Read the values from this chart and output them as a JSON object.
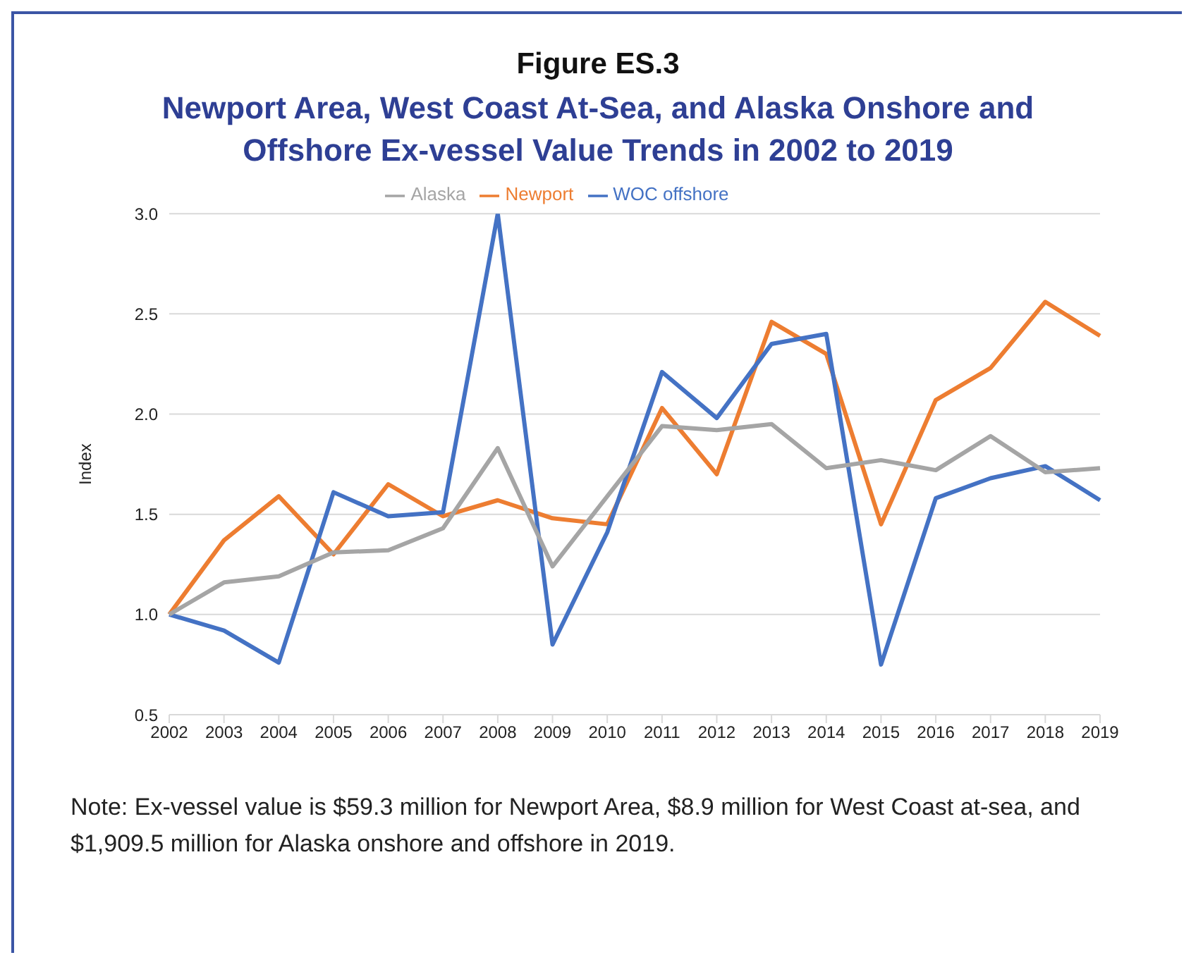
{
  "chart_data": {
    "type": "line",
    "title": "Figure ES.3",
    "subtitle": "Newport Area, West Coast At-Sea, and Alaska Onshore and Offshore Ex-vessel Value Trends in 2002 to 2019",
    "ylabel": "Index",
    "categories": [
      "2002",
      "2003",
      "2004",
      "2005",
      "2006",
      "2007",
      "2008",
      "2009",
      "2010",
      "2011",
      "2012",
      "2013",
      "2014",
      "2015",
      "2016",
      "2017",
      "2018",
      "2019"
    ],
    "series": [
      {
        "name": "Newport",
        "color": "#ed7d31",
        "values": [
          1.0,
          1.37,
          1.59,
          1.3,
          1.65,
          1.49,
          1.57,
          1.48,
          1.45,
          2.03,
          1.7,
          2.46,
          2.3,
          1.45,
          2.07,
          2.23,
          2.56,
          2.39
        ]
      },
      {
        "name": "WOC offshore",
        "color": "#4472c4",
        "values": [
          1.0,
          0.92,
          0.76,
          1.61,
          1.49,
          1.51,
          3.0,
          0.85,
          1.41,
          2.21,
          1.98,
          2.35,
          2.4,
          0.75,
          1.58,
          1.68,
          1.74,
          1.57
        ]
      },
      {
        "name": "Alaska",
        "color": "#a5a5a5",
        "values": [
          1.0,
          1.16,
          1.19,
          1.31,
          1.32,
          1.43,
          1.83,
          1.24,
          1.59,
          1.94,
          1.92,
          1.95,
          1.73,
          1.77,
          1.72,
          1.89,
          1.71,
          1.73
        ]
      }
    ],
    "ylim": [
      0.5,
      3.0
    ],
    "yticks": [
      {
        "value": 0.5,
        "label": "0.5"
      },
      {
        "value": 1.0,
        "label": "1.0"
      },
      {
        "value": 1.5,
        "label": "1.5"
      },
      {
        "value": 2.0,
        "label": "2.0"
      },
      {
        "value": 2.5,
        "label": "2.5"
      },
      {
        "value": 3.0,
        "label": "3.0"
      }
    ],
    "grid": "y",
    "legend": "top",
    "marker": "none",
    "line_style": "solid",
    "annotations": [
      "Note:  Ex-vessel value is $59.3 million for Newport Area, $8.9 million for West Coast at-sea, and $1,909.5 million for Alaska onshore and offshore in 2019."
    ]
  }
}
